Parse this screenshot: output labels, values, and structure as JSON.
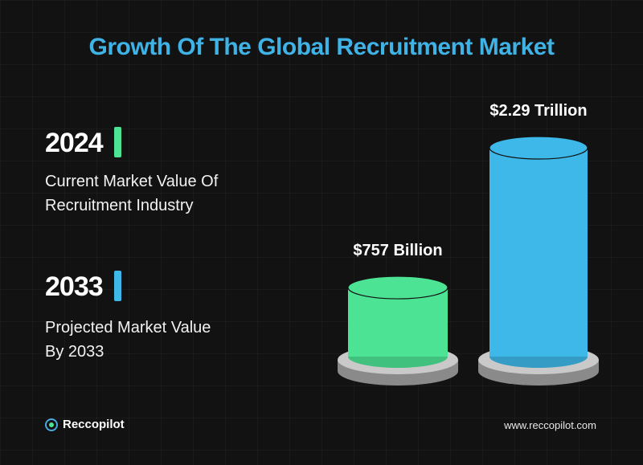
{
  "title": "Growth Of The Global Recruitment Market",
  "colors": {
    "title": "#3fb2e6",
    "green": "#4de394",
    "blue": "#3db8e8",
    "background": "#121212"
  },
  "left_panel": {
    "items": [
      {
        "year": "2024",
        "desc_line1": "Current Market Value Of",
        "desc_line2": "Recruitment Industry"
      },
      {
        "year": "2033",
        "desc_line1": "Projected Market Value",
        "desc_line2": "By 2033"
      }
    ]
  },
  "footer": {
    "brand": "Reccopilot",
    "website": "www.reccopilot.com"
  },
  "chart_data": {
    "type": "bar",
    "categories": [
      "2024",
      "2033"
    ],
    "values": [
      757,
      2290
    ],
    "unit": "billion USD",
    "data_labels": [
      "$757 Billion",
      "$2.29 Trillion"
    ],
    "bar_colors": [
      "#4de394",
      "#3db8e8"
    ]
  }
}
